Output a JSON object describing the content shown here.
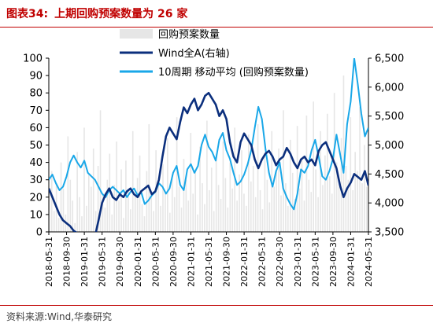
{
  "header": {
    "figure_label": "图表34:",
    "title": "上期回购预案数量为 26 家"
  },
  "source_note": "资料来源:Wind,华泰研究",
  "colors": {
    "brand_red": "#c00000",
    "buyback_count_bar": "#e6e6e6",
    "wind_all_a": "#0b2f7d",
    "ma10_buyback": "#19a7e8"
  },
  "chart_data": {
    "type": "bar+line",
    "title": "上期回购预案数量为 26 家",
    "x_tick_labels": [
      "2018-05-31",
      "2018-09-30",
      "2019-01-31",
      "2019-05-31",
      "2019-09-30",
      "2020-01-31",
      "2020-05-31",
      "2020-09-30",
      "2021-01-31",
      "2021-05-31",
      "2021-09-30",
      "2022-01-31",
      "2022-05-31",
      "2022-09-30",
      "2023-01-31",
      "2023-05-31",
      "2023-09-30",
      "2024-01-31",
      "2024-05-31"
    ],
    "left_axis": {
      "ylim": [
        0,
        100
      ],
      "ticks": [
        0,
        10,
        20,
        30,
        40,
        50,
        60,
        70,
        80,
        90,
        100
      ]
    },
    "right_axis": {
      "ylim": [
        3500,
        6500
      ],
      "ticks": [
        "3,500",
        "4,000",
        "4,500",
        "5,000",
        "5,500",
        "6,000",
        "6,500"
      ]
    },
    "legend": [
      "回购预案数量",
      "Wind全A(右轴)",
      "10周期 移动平均 (回购预案数量)"
    ],
    "legend_placement": "top-center",
    "grid": false,
    "series": [
      {
        "name": "回购预案数量",
        "type": "bar",
        "axis": "left",
        "values": [
          22,
          35,
          12,
          28,
          8,
          40,
          25,
          10,
          55,
          30,
          18,
          5,
          46,
          20,
          9,
          60,
          15,
          33,
          26,
          48,
          12,
          38,
          70,
          22,
          14,
          30,
          45,
          10,
          27,
          52,
          18,
          36,
          8,
          41,
          24,
          13,
          58,
          20,
          31,
          44,
          16,
          9,
          35,
          62,
          21,
          12,
          47,
          28,
          15,
          39,
          23,
          54,
          11,
          33,
          20,
          66,
          26,
          14,
          42,
          30,
          18,
          57,
          22,
          35,
          10,
          49,
          28,
          16,
          64,
          24,
          37,
          12,
          45,
          27,
          19,
          52,
          31,
          14,
          40,
          25,
          60,
          18,
          33,
          47,
          22,
          15,
          56,
          29,
          38,
          20,
          62,
          24,
          13,
          44,
          30,
          17,
          58,
          26,
          35,
          48,
          21,
          70,
          28,
          15,
          53,
          34,
          19,
          61,
          25,
          42,
          18,
          67,
          30,
          23,
          75,
          36,
          20,
          58,
          27,
          44,
          68,
          32,
          22,
          80,
          40,
          26,
          54,
          90,
          38,
          30,
          66,
          24,
          46,
          35,
          72,
          28,
          50,
          26
        ]
      },
      {
        "name": "Wind全A(右轴)",
        "type": "line",
        "axis": "right",
        "x": [
          0,
          0.2,
          0.4,
          0.6,
          0.8,
          1.0,
          1.2,
          1.4,
          1.6,
          1.8,
          2.0,
          2.2,
          2.4,
          2.6,
          2.8,
          3.0,
          3.2,
          3.4,
          3.6,
          3.8,
          4.0,
          4.2,
          4.4,
          4.6,
          4.8,
          5.0,
          5.2,
          5.4,
          5.6,
          5.8,
          6.0,
          6.2,
          6.4,
          6.6,
          6.8,
          7.0,
          7.2,
          7.4,
          7.6,
          7.8,
          8.0,
          8.2,
          8.4,
          8.6,
          8.8,
          9.0,
          9.2,
          9.4,
          9.6,
          9.8,
          10.0,
          10.2,
          10.4,
          10.6,
          10.8,
          11.0,
          11.2,
          11.4,
          11.6,
          11.8,
          12.0,
          12.2,
          12.4,
          12.6,
          12.8,
          13.0,
          13.2,
          13.4,
          13.6,
          13.8,
          14.0,
          14.2,
          14.4,
          14.6,
          14.8,
          15.0,
          15.2,
          15.4,
          15.6,
          15.8,
          16.0,
          16.2,
          16.4,
          16.6,
          16.8,
          17.0,
          17.2,
          17.4,
          17.6,
          17.8,
          18.0
        ],
        "values": [
          4250,
          4100,
          3950,
          3800,
          3700,
          3650,
          3600,
          3520,
          3480,
          3420,
          3400,
          3380,
          3350,
          3420,
          3700,
          4000,
          4150,
          4250,
          4100,
          4050,
          4150,
          4100,
          4200,
          4250,
          4150,
          4100,
          4200,
          4250,
          4300,
          4150,
          4200,
          4400,
          4800,
          5150,
          5300,
          5200,
          5100,
          5400,
          5650,
          5550,
          5700,
          5800,
          5600,
          5700,
          5850,
          5900,
          5800,
          5700,
          5500,
          5600,
          5450,
          5050,
          4800,
          4700,
          5050,
          5200,
          5100,
          5000,
          4750,
          4600,
          4750,
          4850,
          4900,
          4800,
          4650,
          4750,
          4800,
          4950,
          4850,
          4700,
          4600,
          4750,
          4800,
          4700,
          4750,
          4650,
          4900,
          5000,
          5050,
          4900,
          4750,
          4600,
          4300,
          4100,
          4250,
          4350,
          4500,
          4450,
          4400,
          4550,
          4300
        ]
      },
      {
        "name": "10周期 移动平均 (回购预案数量)",
        "type": "line",
        "axis": "left",
        "x": [
          0,
          0.2,
          0.4,
          0.6,
          0.8,
          1.0,
          1.2,
          1.4,
          1.6,
          1.8,
          2.0,
          2.2,
          2.4,
          2.6,
          2.8,
          3.0,
          3.2,
          3.4,
          3.6,
          3.8,
          4.0,
          4.2,
          4.4,
          4.6,
          4.8,
          5.0,
          5.2,
          5.4,
          5.6,
          5.8,
          6.0,
          6.2,
          6.4,
          6.6,
          6.8,
          7.0,
          7.2,
          7.4,
          7.6,
          7.8,
          8.0,
          8.2,
          8.4,
          8.6,
          8.8,
          9.0,
          9.2,
          9.4,
          9.6,
          9.8,
          10.0,
          10.2,
          10.4,
          10.6,
          10.8,
          11.0,
          11.2,
          11.4,
          11.6,
          11.8,
          12.0,
          12.2,
          12.4,
          12.6,
          12.8,
          13.0,
          13.2,
          13.4,
          13.6,
          13.8,
          14.0,
          14.2,
          14.4,
          14.6,
          14.8,
          15.0,
          15.2,
          15.4,
          15.6,
          15.8,
          16.0,
          16.2,
          16.4,
          16.6,
          16.8,
          17.0,
          17.2,
          17.4,
          17.6,
          17.8,
          18.0
        ],
        "values": [
          30,
          33,
          28,
          24,
          26,
          32,
          40,
          44,
          40,
          37,
          41,
          34,
          32,
          30,
          26,
          22,
          20,
          24,
          26,
          24,
          22,
          24,
          20,
          23,
          25,
          21,
          23,
          16,
          18,
          21,
          23,
          28,
          26,
          22,
          25,
          34,
          38,
          27,
          24,
          36,
          39,
          34,
          38,
          50,
          56,
          49,
          46,
          41,
          53,
          57,
          47,
          42,
          34,
          27,
          29,
          33,
          39,
          47,
          60,
          72,
          65,
          48,
          34,
          26,
          35,
          40,
          25,
          20,
          16,
          13,
          22,
          36,
          34,
          38,
          47,
          53,
          43,
          32,
          30,
          35,
          42,
          56,
          45,
          34,
          62,
          75,
          100,
          85,
          68,
          55,
          60
        ]
      }
    ]
  }
}
